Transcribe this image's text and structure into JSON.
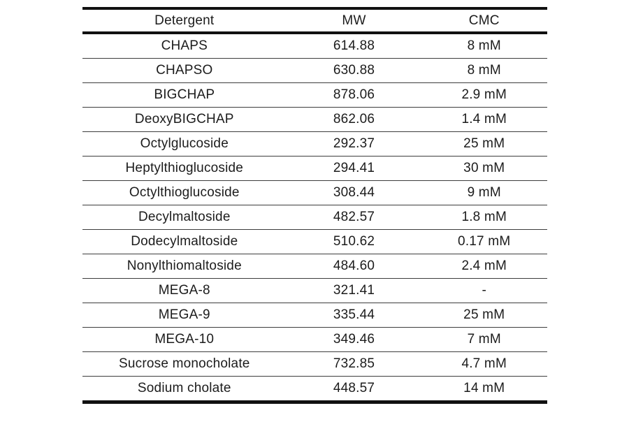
{
  "table": {
    "columns": [
      "Detergent",
      "MW",
      "CMC"
    ],
    "rows": [
      [
        "CHAPS",
        "614.88",
        "8 mM"
      ],
      [
        "CHAPSO",
        "630.88",
        "8 mM"
      ],
      [
        "BIGCHAP",
        "878.06",
        "2.9 mM"
      ],
      [
        "DeoxyBIGCHAP",
        "862.06",
        "1.4 mM"
      ],
      [
        "Octylglucoside",
        "292.37",
        "25 mM"
      ],
      [
        "Heptylthioglucoside",
        "294.41",
        "30 mM"
      ],
      [
        "Octylthioglucoside",
        "308.44",
        "9 mM"
      ],
      [
        "Decylmaltoside",
        "482.57",
        "1.8 mM"
      ],
      [
        "Dodecylmaltoside",
        "510.62",
        "0.17 mM"
      ],
      [
        "Nonylthiomaltoside",
        "484.60",
        "2.4 mM"
      ],
      [
        "MEGA-8",
        "321.41",
        "-"
      ],
      [
        "MEGA-9",
        "335.44",
        "25 mM"
      ],
      [
        "MEGA-10",
        "349.46",
        "7 mM"
      ],
      [
        "Sucrose monocholate",
        "732.85",
        "4.7 mM"
      ],
      [
        "Sodium cholate",
        "448.57",
        "14 mM"
      ]
    ],
    "colors": {
      "border": "#111111",
      "separator": "#3d3d3d",
      "text": "#1c1c1c",
      "background": "#ffffff"
    }
  }
}
